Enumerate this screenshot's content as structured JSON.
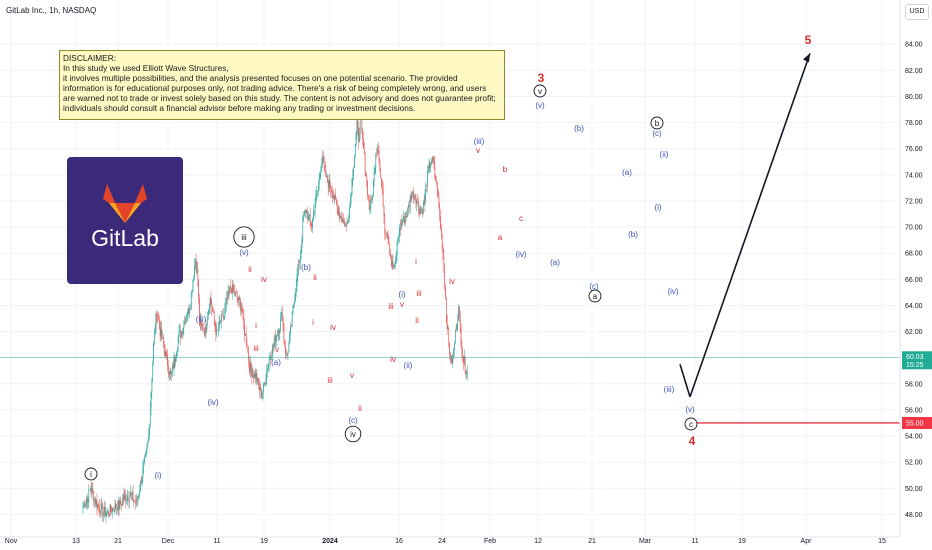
{
  "header": {
    "title": "GitLab Inc., 1h, NASDAQ",
    "currency_button": "USD"
  },
  "disclaimer": {
    "lines": [
      "DISCLAIMER:",
      "In this study we used Elliott Wave Structures,",
      " it involves multiple possibilities, and the analysis presented focuses on one potential scenario. The provided",
      "information is for educational purposes only, not trading advice. There's a risk of being completely wrong, and users",
      "are warned not to trade or invest solely based on this study. The content is not advisory and does not guarantee profit;",
      "individuals should consult a financial advisor before making any trading or investment decisions."
    ]
  },
  "logo": {
    "text": "GitLab",
    "icon": "gitlab-fox-icon"
  },
  "colors": {
    "up": "#26a69a",
    "down": "#ef5350",
    "navy": "#3f51b5",
    "red": "#d32f2f",
    "last_price_bg": "#22ab94",
    "target_line": "#f23645",
    "grid": "#f0f3fa",
    "arrow": "#131722",
    "logo_bg": "#3b2a7a"
  },
  "chart_data": {
    "type": "candlestick",
    "ylim": [
      47,
      86
    ],
    "y_ticks": [
      "48.00",
      "50.00",
      "52.00",
      "54.00",
      "56.00",
      "58.00",
      "60.00",
      "62.00",
      "64.00",
      "66.00",
      "68.00",
      "70.00",
      "72.00",
      "74.00",
      "76.00",
      "78.00",
      "80.00",
      "82.00",
      "84.00"
    ],
    "x_tick_labels": [
      "Nov",
      "13",
      "21",
      "Dec",
      "11",
      "19",
      "2024",
      "16",
      "24",
      "Feb",
      "12",
      "21",
      "Mar",
      "11",
      "19",
      "Apr",
      "15"
    ],
    "last_price": {
      "value": "60.03",
      "countdown": "15:25",
      "price": 60.03
    },
    "target_price": {
      "value": "55.00",
      "price": 55.0
    },
    "path": [
      [
        0,
        48.7
      ],
      [
        6,
        49.3
      ],
      [
        9,
        50.1
      ],
      [
        15,
        49.0
      ],
      [
        20,
        48.5
      ],
      [
        25,
        48.2
      ],
      [
        30,
        48.1
      ],
      [
        35,
        48.4
      ],
      [
        40,
        48.6
      ],
      [
        45,
        48.7
      ],
      [
        50,
        49.3
      ],
      [
        58,
        49.5
      ],
      [
        65,
        48.8
      ],
      [
        72,
        51
      ],
      [
        77,
        52.6
      ],
      [
        80,
        54
      ],
      [
        82,
        56.3
      ],
      [
        86,
        61
      ],
      [
        90,
        63.6
      ],
      [
        94,
        62
      ],
      [
        98,
        61
      ],
      [
        103,
        59.6
      ],
      [
        107,
        58.5
      ],
      [
        112,
        60
      ],
      [
        116,
        61.5
      ],
      [
        120,
        62
      ],
      [
        124,
        63
      ],
      [
        128,
        63.5
      ],
      [
        131,
        64.3
      ],
      [
        134,
        66
      ],
      [
        137,
        67.6
      ],
      [
        140,
        66
      ],
      [
        142,
        62.6
      ],
      [
        146,
        62.3
      ],
      [
        149,
        62
      ],
      [
        152,
        63.5
      ],
      [
        155,
        64.5
      ],
      [
        157,
        63.8
      ],
      [
        160,
        62.8
      ],
      [
        163,
        61.8
      ],
      [
        168,
        62.8
      ],
      [
        172,
        63.2
      ],
      [
        176,
        64.5
      ],
      [
        180,
        65.4
      ],
      [
        184,
        64.9
      ],
      [
        188,
        64.6
      ],
      [
        191,
        64.2
      ],
      [
        194,
        63.6
      ],
      [
        197,
        62
      ],
      [
        200,
        61
      ],
      [
        203,
        59.3
      ],
      [
        207,
        58.8
      ],
      [
        211,
        58.6
      ],
      [
        214,
        57.8
      ],
      [
        217,
        57.2
      ],
      [
        220,
        57.6
      ],
      [
        225,
        59.4
      ],
      [
        230,
        60.5
      ],
      [
        235,
        61.6
      ],
      [
        240,
        62.5
      ],
      [
        243,
        63.5
      ],
      [
        245,
        61.5
      ],
      [
        248,
        60
      ],
      [
        251,
        61
      ],
      [
        254,
        62.5
      ],
      [
        257,
        64.2
      ],
      [
        260,
        65.8
      ],
      [
        263,
        67
      ],
      [
        266,
        68.6
      ],
      [
        269,
        70.8
      ],
      [
        272,
        71.3
      ],
      [
        276,
        70.5
      ],
      [
        279,
        70.1
      ],
      [
        282,
        71.6
      ],
      [
        286,
        72.8
      ],
      [
        289,
        74.2
      ],
      [
        292,
        75.5
      ],
      [
        294,
        74.5
      ],
      [
        297,
        73.6
      ],
      [
        301,
        73.2
      ],
      [
        305,
        72.5
      ],
      [
        309,
        71.6
      ],
      [
        313,
        71
      ],
      [
        318,
        70.4
      ],
      [
        321,
        70.1
      ],
      [
        325,
        71.5
      ],
      [
        328,
        73.6
      ],
      [
        331,
        75.6
      ],
      [
        334,
        77.8
      ],
      [
        336,
        76.8
      ],
      [
        338,
        78.5
      ],
      [
        340,
        77.2
      ],
      [
        343,
        75.3
      ],
      [
        346,
        73.5
      ],
      [
        349,
        71.5
      ],
      [
        352,
        72
      ],
      [
        355,
        74
      ],
      [
        357,
        75.9
      ],
      [
        360,
        76.2
      ],
      [
        362,
        74.3
      ],
      [
        366,
        72
      ],
      [
        368,
        70
      ],
      [
        372,
        69.5
      ],
      [
        376,
        67.2
      ],
      [
        380,
        66.8
      ],
      [
        384,
        69.2
      ],
      [
        388,
        70.3
      ],
      [
        392,
        70.6
      ],
      [
        396,
        71.2
      ],
      [
        400,
        72.5
      ],
      [
        405,
        72.5
      ],
      [
        409,
        71.5
      ],
      [
        413,
        71.3
      ],
      [
        416,
        71.8
      ],
      [
        419,
        73.5
      ],
      [
        422,
        74.6
      ],
      [
        425,
        75.2
      ],
      [
        428,
        74.5
      ],
      [
        432,
        72.8
      ],
      [
        436,
        70
      ],
      [
        439,
        68
      ],
      [
        443,
        63.5
      ],
      [
        446,
        61
      ],
      [
        449,
        59.5
      ],
      [
        452,
        60.5
      ],
      [
        455,
        62.5
      ],
      [
        458,
        63.7
      ],
      [
        461,
        61.5
      ],
      [
        464,
        59.8
      ],
      [
        467,
        59.2
      ],
      [
        469,
        58.9
      ]
    ],
    "projection": [
      {
        "x": "Mar 10",
        "price": 57.0
      },
      {
        "x": "Apr 1",
        "price": 83.3
      }
    ],
    "wave_labels": [
      {
        "text": "i",
        "color": "navy",
        "circled": true
      },
      {
        "text": "(i)",
        "color": "navy"
      },
      {
        "text": "(iii)",
        "color": "navy"
      },
      {
        "text": "(iv)",
        "color": "navy"
      },
      {
        "text": "iii",
        "color": "navy",
        "circled": true
      },
      {
        "text": "(v)",
        "color": "navy"
      },
      {
        "text": "ii",
        "color": "red"
      },
      {
        "text": "iv",
        "color": "red"
      },
      {
        "text": "i",
        "color": "red"
      },
      {
        "text": "iii",
        "color": "red"
      },
      {
        "text": "v",
        "color": "red"
      },
      {
        "text": "(a)",
        "color": "navy"
      },
      {
        "text": "(b)",
        "color": "navy"
      },
      {
        "text": "ii",
        "color": "red"
      },
      {
        "text": "i",
        "color": "red"
      },
      {
        "text": "iv",
        "color": "red"
      },
      {
        "text": "iii",
        "color": "red"
      },
      {
        "text": "v",
        "color": "red"
      },
      {
        "text": "ii",
        "color": "red"
      },
      {
        "text": "(c)",
        "color": "navy"
      },
      {
        "text": "iv",
        "color": "navy",
        "circled": true
      },
      {
        "text": "(i)",
        "color": "navy"
      },
      {
        "text": "v",
        "color": "red"
      },
      {
        "text": "iii",
        "color": "red"
      },
      {
        "text": "iv",
        "color": "red"
      },
      {
        "text": "ii",
        "color": "red"
      },
      {
        "text": "(ii)",
        "color": "navy"
      },
      {
        "text": "i",
        "color": "red"
      },
      {
        "text": "iii",
        "color": "red"
      },
      {
        "text": "iv",
        "color": "red"
      },
      {
        "text": "(iii)",
        "color": "navy"
      },
      {
        "text": "v",
        "color": "red"
      },
      {
        "text": "b",
        "color": "red"
      },
      {
        "text": "a",
        "color": "red"
      },
      {
        "text": "c",
        "color": "red"
      },
      {
        "text": "(iv)",
        "color": "navy"
      },
      {
        "text": "3",
        "color": "red",
        "big": true
      },
      {
        "text": "v",
        "color": "navy",
        "circled": true
      },
      {
        "text": "(v)",
        "color": "navy"
      },
      {
        "text": "(b)",
        "color": "navy"
      },
      {
        "text": "(a)",
        "color": "navy"
      },
      {
        "text": "(c)",
        "color": "navy"
      },
      {
        "text": "a",
        "color": "navy",
        "circled": true
      },
      {
        "text": "(a)",
        "color": "navy"
      },
      {
        "text": "(b)",
        "color": "navy"
      },
      {
        "text": "b",
        "color": "navy",
        "circled": true
      },
      {
        "text": "(c)",
        "color": "navy"
      },
      {
        "text": "(ii)",
        "color": "navy"
      },
      {
        "text": "(i)",
        "color": "navy"
      },
      {
        "text": "(iv)",
        "color": "navy"
      },
      {
        "text": "(iii)",
        "color": "navy"
      },
      {
        "text": "(v)",
        "color": "navy"
      },
      {
        "text": "c",
        "color": "navy",
        "circled": true
      },
      {
        "text": "4",
        "color": "red",
        "big": true
      },
      {
        "text": "5",
        "color": "red",
        "big": true
      }
    ]
  }
}
